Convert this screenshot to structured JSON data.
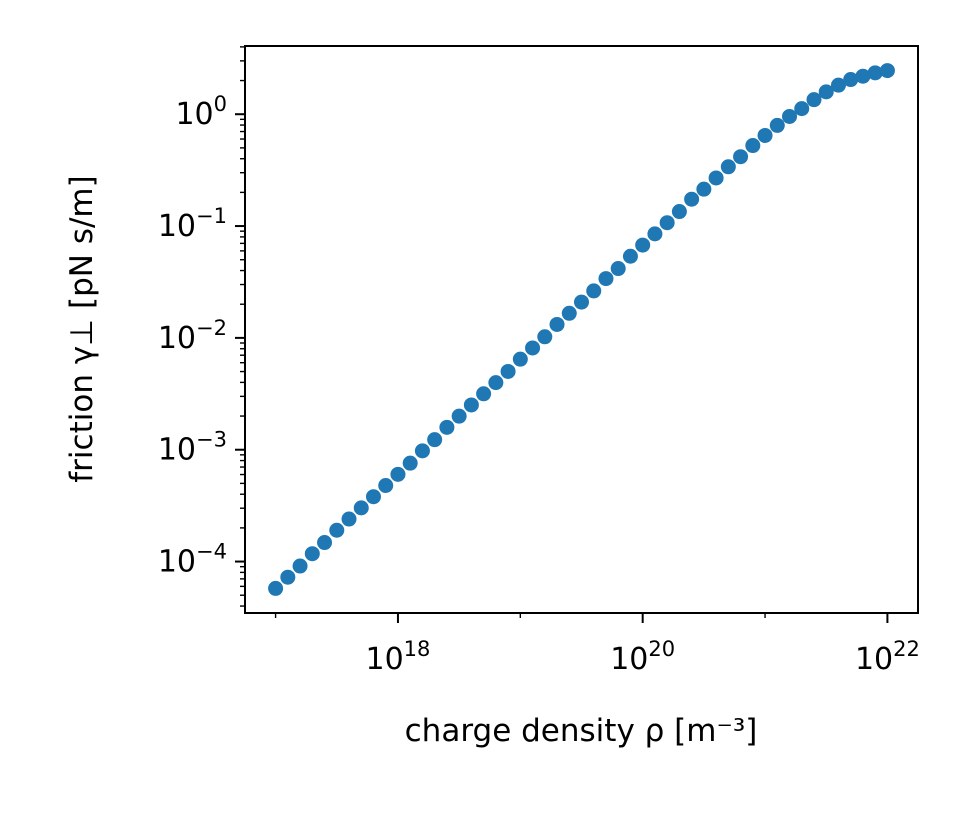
{
  "chart_data": {
    "type": "scatter",
    "title": "",
    "xlabel": "charge density ρ [m⁻³]",
    "ylabel": "friction γ⊥ [pN s/m]",
    "xscale": "log",
    "yscale": "log",
    "xlim_log10": [
      16.75,
      22.25
    ],
    "ylim_log10": [
      -4.46,
      0.61
    ],
    "grid": false,
    "legend": "none",
    "marker_color": "#1f77b4",
    "xticks": [
      {
        "base": "10",
        "exp": "18",
        "value_log10": 18
      },
      {
        "base": "10",
        "exp": "20",
        "value_log10": 20
      },
      {
        "base": "10",
        "exp": "22",
        "value_log10": 22
      }
    ],
    "yticks": [
      {
        "base": "10",
        "exp": "0",
        "value_log10": 0
      },
      {
        "base": "10",
        "exp": "−1",
        "value_log10": -1
      },
      {
        "base": "10",
        "exp": "−2",
        "value_log10": -2
      },
      {
        "base": "10",
        "exp": "−3",
        "value_log10": -3
      },
      {
        "base": "10",
        "exp": "−4",
        "value_log10": -4
      }
    ],
    "series": [
      {
        "x_log10": [
          17.0,
          17.1,
          17.2,
          17.3,
          17.4,
          17.5,
          17.6,
          17.7,
          17.8,
          17.9,
          18.0,
          18.1,
          18.2,
          18.3,
          18.4,
          18.5,
          18.6,
          18.7,
          18.8,
          18.9,
          19.0,
          19.1,
          19.2,
          19.3,
          19.4,
          19.5,
          19.6,
          19.7,
          19.8,
          19.9,
          20.0,
          20.1,
          20.2,
          20.3,
          20.4,
          20.5,
          20.6,
          20.7,
          20.8,
          20.9,
          21.0,
          21.1,
          21.2,
          21.3,
          21.4,
          21.5,
          21.6,
          21.7,
          21.8,
          21.9,
          22.0
        ],
        "y_log10": [
          -4.24,
          -4.14,
          -4.04,
          -3.93,
          -3.83,
          -3.72,
          -3.62,
          -3.52,
          -3.42,
          -3.32,
          -3.22,
          -3.12,
          -3.01,
          -2.91,
          -2.8,
          -2.7,
          -2.6,
          -2.5,
          -2.4,
          -2.3,
          -2.19,
          -2.09,
          -1.99,
          -1.88,
          -1.78,
          -1.68,
          -1.58,
          -1.47,
          -1.38,
          -1.27,
          -1.17,
          -1.07,
          -0.97,
          -0.87,
          -0.76,
          -0.67,
          -0.57,
          -0.47,
          -0.38,
          -0.28,
          -0.19,
          -0.1,
          -0.02,
          0.05,
          0.13,
          0.2,
          0.26,
          0.31,
          0.34,
          0.37,
          0.39
        ]
      }
    ]
  }
}
